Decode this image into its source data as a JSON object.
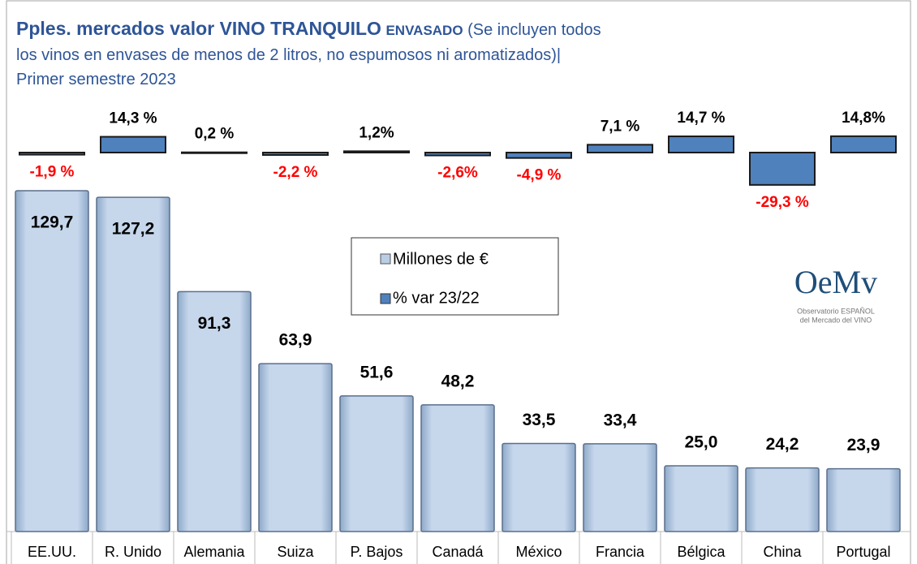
{
  "chart_data": {
    "type": "bar",
    "title": "Pples. mercados valor VINO  TRANQUILO",
    "title_suffix": "ENVASADO",
    "note": [
      "(Se incluyen todos",
      "los vinos en envases de menos de 2 litros, no espumosos ni aromatizados)|"
    ],
    "subtitle": "Primer semestre 2023",
    "categories": [
      "EE.UU.",
      "R. Unido",
      "Alemania",
      "Suiza",
      "P. Bajos",
      "Canadá",
      "México",
      "Francia",
      "Bélgica",
      "China",
      "Portugal"
    ],
    "series": [
      {
        "name": "Millones de €",
        "color": "#b9cde5",
        "values": [
          129.7,
          127.2,
          91.3,
          63.9,
          51.6,
          48.2,
          33.5,
          33.4,
          25.0,
          24.2,
          23.9
        ],
        "value_labels": [
          "129,7",
          "127,2",
          "91,3",
          "63,9",
          "51,6",
          "48,2",
          "33,5",
          "33,4",
          "25,0",
          "24,2",
          "23,9"
        ]
      },
      {
        "name": "% var 23/22",
        "color": "#4f81bd",
        "negative_label_color": "#ff0000",
        "values": [
          -1.9,
          14.3,
          0.2,
          -2.2,
          1.2,
          -2.6,
          -4.9,
          7.1,
          14.7,
          -29.3,
          14.8
        ],
        "value_labels": [
          "-1,9 %",
          "14,3 %",
          "0,2 %",
          "-2,2 %",
          "1,2%",
          "-2,6%",
          "-4,9 %",
          "7,1 %",
          "14,7 %",
          "-29,3 %",
          "14,8%"
        ]
      }
    ],
    "logo": {
      "mark": "OeMv",
      "lines": [
        "Observatorio ESPAÑOL",
        "del Mercado del VINO"
      ]
    }
  }
}
